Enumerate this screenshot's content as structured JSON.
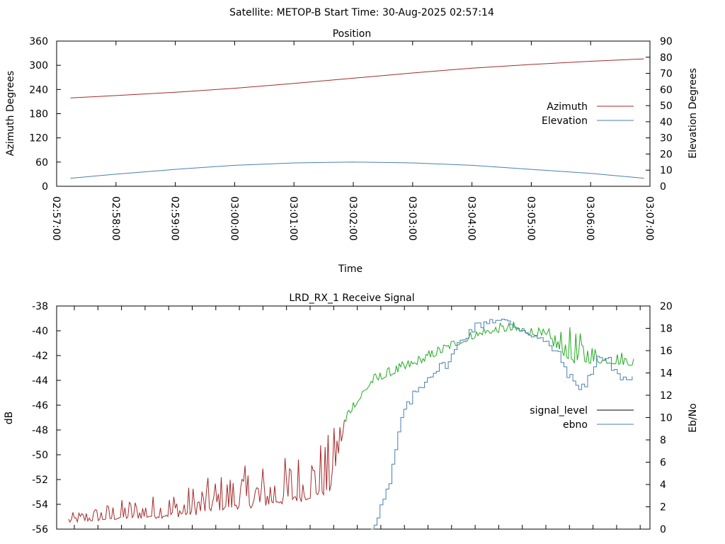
{
  "figure_title": "Satellite: METOP-B    Start Time: 30-Aug-2025 02:57:14",
  "chart_data": [
    {
      "type": "line",
      "title": "Position",
      "xlabel": "Time",
      "ylabel": "Azimuth Degrees",
      "y2label": "Elevation Degrees",
      "x_ticks": [
        "02:57:00",
        "02:58:00",
        "02:59:00",
        "03:00:00",
        "03:01:00",
        "03:02:00",
        "03:03:00",
        "03:04:00",
        "03:05:00",
        "03:06:00",
        "03:07:00"
      ],
      "ylim": [
        0,
        360
      ],
      "y_ticks": [
        0,
        60,
        120,
        180,
        240,
        300,
        360
      ],
      "y2lim": [
        0,
        90
      ],
      "y2_ticks": [
        0,
        10,
        20,
        30,
        40,
        50,
        60,
        70,
        80,
        90
      ],
      "grid": false,
      "legend_position": "right",
      "series": [
        {
          "name": "Azimuth",
          "axis": "y",
          "color": "#a52a2a",
          "x": [
            "02:57:14",
            "02:58:00",
            "02:59:00",
            "03:00:00",
            "03:01:00",
            "03:02:00",
            "03:03:00",
            "03:04:00",
            "03:05:00",
            "03:06:00",
            "03:06:54"
          ],
          "values": [
            219,
            225,
            233,
            243,
            255,
            268,
            281,
            293,
            302,
            310,
            316
          ]
        },
        {
          "name": "Elevation",
          "axis": "y2",
          "color": "#4a7fb0",
          "x": [
            "02:57:14",
            "02:58:00",
            "02:59:00",
            "03:00:00",
            "03:01:00",
            "03:02:00",
            "03:03:00",
            "03:04:00",
            "03:05:00",
            "03:06:00",
            "03:06:54"
          ],
          "values": [
            5,
            7.5,
            10.5,
            13,
            14.5,
            15,
            14.5,
            13,
            10.5,
            8,
            5
          ]
        }
      ]
    },
    {
      "type": "line",
      "title": "LRD_RX_1 Receive Signal",
      "xlabel": "",
      "ylabel": "dB",
      "y2label": "Eb/No",
      "x_ticks": [],
      "ylim": [
        -56,
        -38
      ],
      "y_ticks": [
        -56,
        -54,
        -52,
        -50,
        -48,
        -46,
        -44,
        -42,
        -40,
        -38
      ],
      "y2lim": [
        0,
        20
      ],
      "y2_ticks": [
        0,
        2,
        4,
        6,
        8,
        10,
        12,
        14,
        16,
        18,
        20
      ],
      "grid": false,
      "legend_position": "right",
      "series": [
        {
          "name": "signal_level",
          "axis": "y",
          "legend_color": "#000000",
          "noisy_color": "#a52a2a",
          "locked_color": "#22aa22",
          "time_minutes": [
            0.2,
            0.7,
            1.2,
            1.7,
            2.2,
            2.7,
            3.2,
            3.7,
            4.2,
            4.6,
            4.9,
            5.3,
            5.7,
            6.2,
            6.7,
            7.2,
            7.7,
            8.2,
            8.7,
            9.2,
            9.75
          ],
          "values": [
            -55.4,
            -55.2,
            -55,
            -54.9,
            -54.7,
            -54.2,
            -53.9,
            -53.7,
            -53.2,
            -52.6,
            -46.9,
            -44.2,
            -43.4,
            -42.4,
            -41.2,
            -40.2,
            -39.9,
            -40.5,
            -42.3,
            -42.5,
            -42.7
          ],
          "noise_amplitude": [
            0.3,
            0.5,
            0.7,
            0.8,
            1.0,
            1.2,
            1.4,
            1.5,
            1.8,
            2.0,
            0.4,
            0.3,
            0.3,
            0.3,
            0.3,
            0.3,
            0.3,
            0.3,
            1.2,
            0.4,
            0.5
          ]
        },
        {
          "name": "ebno",
          "axis": "y2",
          "color": "#4a7fb0",
          "time_minutes": [
            5.3,
            5.6,
            5.8,
            6.0,
            6.3,
            6.6,
            6.8,
            7.0,
            7.3,
            7.6,
            8.0,
            8.4,
            8.7,
            8.9,
            9.1,
            9.3,
            9.5,
            9.75
          ],
          "values": [
            0,
            4,
            10,
            12,
            14,
            15,
            17,
            18,
            18.8,
            18.5,
            17.5,
            16,
            13,
            12.8,
            15.5,
            15,
            13.5,
            13.4
          ]
        }
      ]
    }
  ]
}
